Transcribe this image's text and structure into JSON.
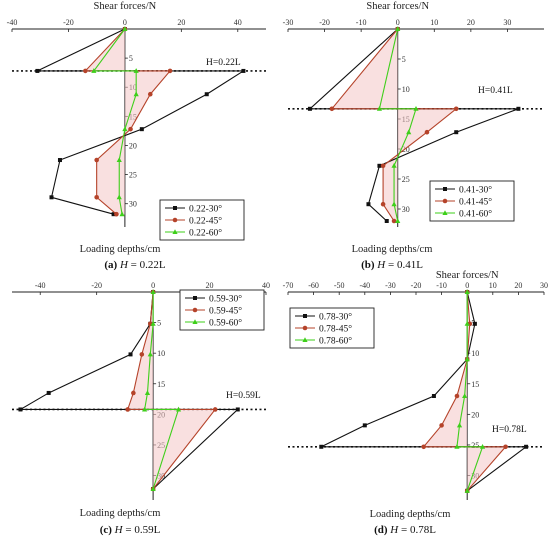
{
  "chart_data": [
    {
      "type": "line",
      "caption": {
        "letter": "(a)",
        "var": "H",
        "rest": " = 0.22L"
      },
      "xlabel": "Shear forces/N",
      "ylabel": "Loading depths/cm",
      "xlim": [
        -40,
        50
      ],
      "ylim": [
        0,
        34
      ],
      "xticks": [
        -40,
        -20,
        0,
        20,
        40
      ],
      "yticks": [
        5,
        10,
        15,
        20,
        25,
        30
      ],
      "legend_position": "bottom-right",
      "annotation": {
        "text": "H=0.22L",
        "depth": 7.2
      },
      "series": [
        {
          "name": "0.22-30°",
          "color": "#111111",
          "marker": "square",
          "points": [
            [
              0,
              0
            ],
            [
              -31,
              7.2
            ],
            [
              42,
              7.2
            ],
            [
              29,
              11.2
            ],
            [
              6,
              17.2
            ],
            [
              -23,
              22.5
            ],
            [
              -26,
              28.9
            ],
            [
              -4,
              31.8
            ]
          ]
        },
        {
          "name": "0.22-45°",
          "color": "#b5432a",
          "marker": "circle",
          "points": [
            [
              0,
              0
            ],
            [
              -14,
              7.2
            ],
            [
              16,
              7.2
            ],
            [
              9,
              11.2
            ],
            [
              2,
              17.2
            ],
            [
              -10,
              22.5
            ],
            [
              -10,
              28.9
            ],
            [
              -3,
              31.8
            ]
          ]
        },
        {
          "name": "0.22-60°",
          "color": "#3ecf1a",
          "marker": "triangle",
          "points": [
            [
              0,
              0
            ],
            [
              -11,
              7.2
            ],
            [
              4,
              7.2
            ],
            [
              4,
              11.2
            ],
            [
              0,
              17.2
            ],
            [
              -2,
              22.5
            ],
            [
              -2,
              28.9
            ],
            [
              -1,
              31.8
            ]
          ]
        }
      ]
    },
    {
      "type": "line",
      "caption": {
        "letter": "(b)",
        "var": "H",
        "rest": " = 0.41L"
      },
      "xlabel": "Shear forces/N",
      "ylabel": "Loading depths/cm",
      "xlim": [
        -30,
        40
      ],
      "ylim": [
        0,
        33
      ],
      "xticks": [
        -30,
        -20,
        -10,
        0,
        10,
        20,
        30
      ],
      "yticks": [
        5,
        10,
        15,
        20,
        25,
        30
      ],
      "legend_position": "bottom-right",
      "annotation": {
        "text": "H=0.41L",
        "depth": 13.3
      },
      "series": [
        {
          "name": "0.41-30°",
          "color": "#111111",
          "marker": "square",
          "points": [
            [
              0,
              0
            ],
            [
              -24,
              13.3
            ],
            [
              33,
              13.3
            ],
            [
              16,
              17.2
            ],
            [
              -5,
              22.8
            ],
            [
              -8,
              29.2
            ],
            [
              -3,
              32
            ]
          ]
        },
        {
          "name": "0.41-45°",
          "color": "#b5432a",
          "marker": "circle",
          "points": [
            [
              0,
              0
            ],
            [
              -18,
              13.3
            ],
            [
              16,
              13.3
            ],
            [
              8,
              17.2
            ],
            [
              -4,
              22.8
            ],
            [
              -4,
              29.2
            ],
            [
              -1,
              32
            ]
          ]
        },
        {
          "name": "0.41-60°",
          "color": "#3ecf1a",
          "marker": "triangle",
          "points": [
            [
              0,
              0
            ],
            [
              -5,
              13.3
            ],
            [
              5,
              13.3
            ],
            [
              3,
              17.2
            ],
            [
              -1,
              22.8
            ],
            [
              -1,
              29.2
            ],
            [
              0,
              32
            ]
          ]
        }
      ]
    },
    {
      "type": "line",
      "caption": {
        "letter": "(c)",
        "var": "H",
        "rest": " = 0.59L"
      },
      "xlabel": "",
      "ylabel": "Loading depths/cm",
      "xlim": [
        -50,
        40
      ],
      "ylim": [
        0,
        34
      ],
      "xticks": [
        -40,
        -20,
        0,
        20,
        40
      ],
      "yticks": [
        5,
        10,
        15,
        20,
        25,
        30
      ],
      "legend_position": "top-right",
      "annotation": {
        "text": "H=0.59L",
        "depth": 19.2
      },
      "series": [
        {
          "name": "0.59-30°",
          "color": "#111111",
          "marker": "square",
          "points": [
            [
              0,
              0
            ],
            [
              -1,
              5.2
            ],
            [
              -8,
              10.2
            ],
            [
              -37,
              16.5
            ],
            [
              -47,
              19.2
            ],
            [
              30,
              19.2
            ],
            [
              0,
              32.2
            ]
          ]
        },
        {
          "name": "0.59-45°",
          "color": "#b5432a",
          "marker": "circle",
          "points": [
            [
              0,
              0
            ],
            [
              -1,
              5.2
            ],
            [
              -4,
              10.2
            ],
            [
              -7,
              16.5
            ],
            [
              -9,
              19.2
            ],
            [
              22,
              19.2
            ],
            [
              0,
              32.2
            ]
          ]
        },
        {
          "name": "0.59-60°",
          "color": "#3ecf1a",
          "marker": "triangle",
          "points": [
            [
              0,
              0
            ],
            [
              0,
              5.2
            ],
            [
              -1,
              10.2
            ],
            [
              -2,
              16.5
            ],
            [
              -3,
              19.2
            ],
            [
              9,
              19.2
            ],
            [
              0,
              32.2
            ]
          ]
        }
      ]
    },
    {
      "type": "line",
      "caption": {
        "letter": "(d)",
        "var": "H",
        "rest": " = 0.78L"
      },
      "xlabel": "Shear forces/N",
      "ylabel": "Loading depths/cm",
      "xlim": [
        -70,
        30
      ],
      "ylim": [
        0,
        34
      ],
      "xticks": [
        -70,
        -60,
        -50,
        -40,
        -30,
        -20,
        -10,
        0,
        10,
        20,
        30
      ],
      "yticks": [
        5,
        10,
        15,
        20,
        25,
        30
      ],
      "legend_position": "top-left",
      "annotation": {
        "text": "H=0.78L",
        "depth": 25.3
      },
      "series": [
        {
          "name": "0.78-30°",
          "color": "#111111",
          "marker": "square",
          "points": [
            [
              0,
              0
            ],
            [
              3,
              5.2
            ],
            [
              0,
              11
            ],
            [
              -13,
              17
            ],
            [
              -40,
              21.8
            ],
            [
              -57,
              25.3
            ],
            [
              23,
              25.3
            ],
            [
              0,
              32.5
            ]
          ]
        },
        {
          "name": "0.78-45°",
          "color": "#b5432a",
          "marker": "circle",
          "points": [
            [
              0,
              0
            ],
            [
              1,
              5.2
            ],
            [
              0,
              11
            ],
            [
              -4,
              17
            ],
            [
              -10,
              21.8
            ],
            [
              -17,
              25.3
            ],
            [
              15,
              25.3
            ],
            [
              0,
              32.5
            ]
          ]
        },
        {
          "name": "0.78-60°",
          "color": "#3ecf1a",
          "marker": "triangle",
          "points": [
            [
              0,
              0
            ],
            [
              0,
              5.2
            ],
            [
              0,
              11
            ],
            [
              -1,
              17
            ],
            [
              -3,
              21.8
            ],
            [
              -4,
              25.3
            ],
            [
              6,
              25.3
            ],
            [
              0,
              32.5
            ]
          ]
        }
      ]
    }
  ]
}
